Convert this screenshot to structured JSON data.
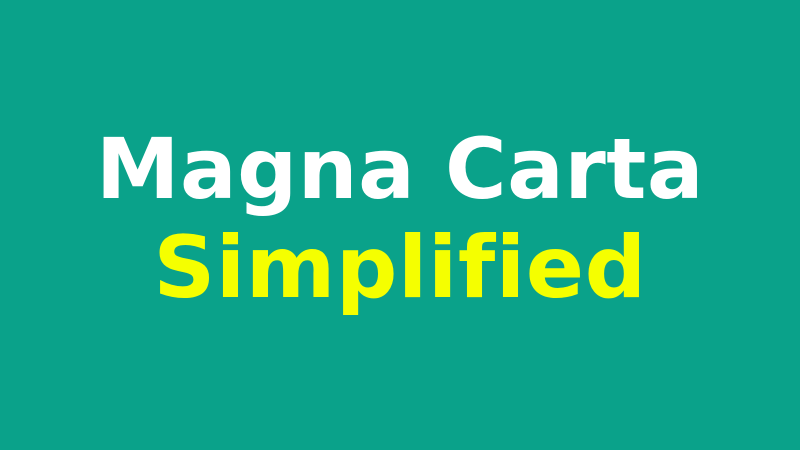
{
  "title": {
    "line1": "Magna Carta",
    "line2": "Simplified"
  },
  "colors": {
    "background": "#0aa28a",
    "line1": "#ffffff",
    "line2": "#f5ff00"
  }
}
